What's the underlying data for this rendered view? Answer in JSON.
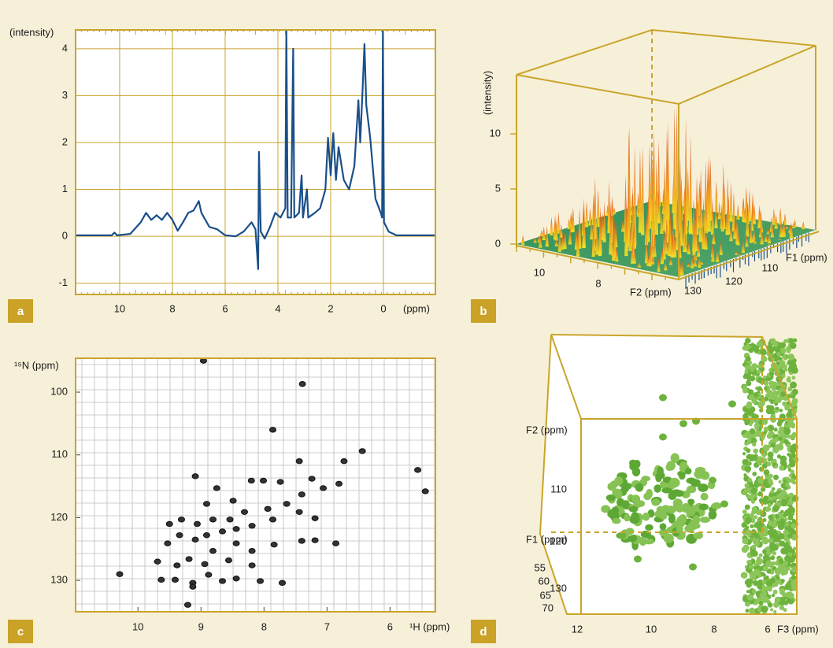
{
  "panels": {
    "a": {
      "label": "a",
      "ylabel": "(intensity)",
      "xlabel": "(ppm)",
      "xlim": [
        11.67,
        -1.97
      ],
      "ylim": [
        -1.24,
        4.4
      ],
      "xticks": [
        10,
        8,
        6,
        4,
        2,
        0
      ],
      "yticks": [
        -1,
        0,
        1,
        2,
        3,
        4
      ],
      "spectrum": {
        "x": [
          11.67,
          10.3,
          10.2,
          10.1,
          9.6,
          9.2,
          9.0,
          8.8,
          8.6,
          8.4,
          8.2,
          8.0,
          7.8,
          7.6,
          7.4,
          7.2,
          7.0,
          6.9,
          6.6,
          6.3,
          6.0,
          5.6,
          5.3,
          5.0,
          4.85,
          4.75,
          4.72,
          4.65,
          4.5,
          4.3,
          4.1,
          3.9,
          3.72,
          3.68,
          3.63,
          3.5,
          3.42,
          3.38,
          3.2,
          3.1,
          3.05,
          2.9,
          2.85,
          2.6,
          2.4,
          2.2,
          2.1,
          2.0,
          1.9,
          1.8,
          1.7,
          1.5,
          1.3,
          1.1,
          0.95,
          0.88,
          0.8,
          0.72,
          0.65,
          0.5,
          0.3,
          0.1,
          0.05,
          0.02,
          -0.02,
          -0.2,
          -0.5,
          -1.97
        ],
        "y": [
          0.02,
          0.02,
          0.08,
          0.02,
          0.05,
          0.3,
          0.5,
          0.35,
          0.45,
          0.35,
          0.5,
          0.35,
          0.12,
          0.3,
          0.5,
          0.55,
          0.75,
          0.5,
          0.2,
          0.15,
          0.02,
          0.0,
          0.1,
          0.3,
          0.15,
          -0.7,
          1.8,
          0.1,
          -0.05,
          0.2,
          0.5,
          0.4,
          0.6,
          4.4,
          0.4,
          0.4,
          4.0,
          0.4,
          0.5,
          1.3,
          0.4,
          1.0,
          0.4,
          0.5,
          0.6,
          1.0,
          2.1,
          1.3,
          2.2,
          1.2,
          1.9,
          1.2,
          1.0,
          1.5,
          2.9,
          2.0,
          3.0,
          4.1,
          2.8,
          2.1,
          0.8,
          0.5,
          0.4,
          4.4,
          0.3,
          0.1,
          0.02,
          0.02
        ]
      }
    },
    "b": {
      "label": "b",
      "zlabel": "(intensity)",
      "zticks": [
        0,
        5,
        10
      ],
      "f2label": "F2 (ppm)",
      "f2ticks": [
        10,
        8
      ],
      "f1label": "F1 (ppm)",
      "f1ticks": [
        130,
        120,
        110
      ]
    },
    "c": {
      "label": "c",
      "ylabel": "¹⁵N (ppm)",
      "xlabel": "¹H (ppm)",
      "xlim": [
        10.99,
        5.28
      ],
      "ylim": [
        94.6,
        135
      ],
      "xticks": [
        10,
        9,
        8,
        7,
        6
      ],
      "yticks": [
        100,
        110,
        120,
        130
      ],
      "peaks": [
        [
          10.29,
          129.0
        ],
        [
          7.39,
          98.7
        ],
        [
          8.96,
          95.0
        ],
        [
          7.86,
          106.0
        ],
        [
          9.09,
          113.4
        ],
        [
          7.44,
          111.0
        ],
        [
          6.73,
          111.0
        ],
        [
          6.44,
          109.4
        ],
        [
          5.56,
          112.4
        ],
        [
          5.44,
          115.8
        ],
        [
          8.01,
          114.1
        ],
        [
          8.2,
          114.1
        ],
        [
          7.74,
          114.3
        ],
        [
          7.24,
          113.8
        ],
        [
          7.06,
          115.3
        ],
        [
          6.81,
          114.6
        ],
        [
          8.91,
          117.8
        ],
        [
          8.49,
          117.3
        ],
        [
          8.75,
          115.3
        ],
        [
          7.4,
          116.3
        ],
        [
          7.64,
          117.8
        ],
        [
          7.94,
          118.6
        ],
        [
          8.31,
          119.1
        ],
        [
          8.54,
          120.3
        ],
        [
          8.81,
          120.3
        ],
        [
          9.06,
          121.0
        ],
        [
          9.31,
          120.3
        ],
        [
          9.5,
          121.0
        ],
        [
          9.34,
          122.8
        ],
        [
          9.09,
          123.5
        ],
        [
          8.91,
          122.8
        ],
        [
          8.66,
          122.2
        ],
        [
          8.44,
          121.8
        ],
        [
          8.19,
          121.3
        ],
        [
          7.86,
          120.3
        ],
        [
          7.44,
          119.1
        ],
        [
          7.19,
          120.1
        ],
        [
          7.4,
          123.7
        ],
        [
          7.19,
          123.6
        ],
        [
          6.86,
          124.1
        ],
        [
          7.84,
          124.3
        ],
        [
          8.44,
          124.1
        ],
        [
          8.81,
          125.3
        ],
        [
          9.19,
          126.6
        ],
        [
          9.69,
          127.0
        ],
        [
          9.38,
          127.6
        ],
        [
          8.94,
          127.4
        ],
        [
          8.56,
          126.8
        ],
        [
          8.19,
          127.6
        ],
        [
          9.63,
          129.9
        ],
        [
          9.41,
          129.9
        ],
        [
          9.13,
          130.4
        ],
        [
          8.88,
          129.1
        ],
        [
          8.66,
          130.1
        ],
        [
          8.44,
          129.7
        ],
        [
          8.06,
          130.1
        ],
        [
          7.71,
          130.4
        ],
        [
          9.13,
          131.0
        ],
        [
          9.21,
          133.9
        ],
        [
          9.53,
          124.1
        ],
        [
          8.19,
          125.3
        ]
      ]
    },
    "d": {
      "label": "d",
      "f2label": "F2 (ppm)",
      "f1label": "F1 (ppm)",
      "f3label": "F3 (ppm)",
      "f2ticks": [
        110,
        120,
        130
      ],
      "f1ticks": [
        55,
        60,
        65,
        70
      ],
      "f3ticks": [
        12,
        10,
        8,
        6
      ]
    }
  }
}
